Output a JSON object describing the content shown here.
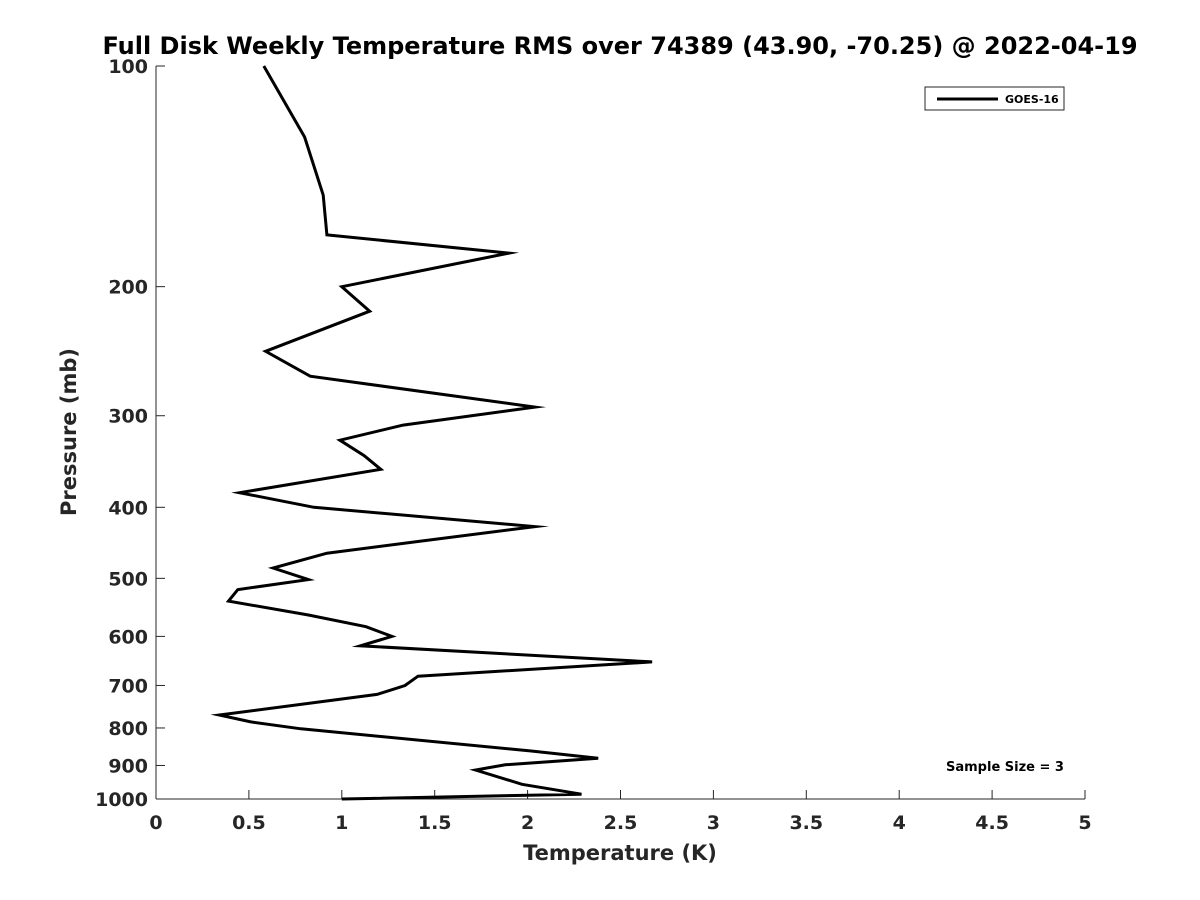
{
  "chart_data": {
    "type": "line",
    "title": "Full Disk Weekly Temperature RMS over 74389 (43.90, -70.25) @ 2022-04-19",
    "xlabel": "Temperature (K)",
    "ylabel": "Pressure (mb)",
    "xlim": [
      0,
      5
    ],
    "ylim": [
      100,
      1000
    ],
    "y_scale": "log",
    "y_reversed": true,
    "x_ticks": [
      0,
      0.5,
      1,
      1.5,
      2,
      2.5,
      3,
      3.5,
      4,
      4.5,
      5
    ],
    "x_tick_labels": [
      "0",
      "0.5",
      "1",
      "1.5",
      "2",
      "2.5",
      "3",
      "3.5",
      "4",
      "4.5",
      "5"
    ],
    "y_ticks": [
      100,
      200,
      300,
      400,
      500,
      600,
      700,
      800,
      900,
      1000
    ],
    "y_tick_labels": [
      "100",
      "200",
      "300",
      "400",
      "500",
      "600",
      "700",
      "800",
      "900",
      "1000"
    ],
    "grid": false,
    "legend_position": "top-right",
    "annotation": "Sample Size = 3",
    "series": [
      {
        "name": "GOES-16",
        "color": "#000000",
        "points": [
          [
            0.58,
            100
          ],
          [
            0.8,
            125
          ],
          [
            0.9,
            150
          ],
          [
            0.92,
            170
          ],
          [
            1.9,
            180
          ],
          [
            1.0,
            200
          ],
          [
            1.15,
            216
          ],
          [
            0.59,
            245
          ],
          [
            0.83,
            265
          ],
          [
            2.04,
            292
          ],
          [
            1.33,
            309
          ],
          [
            0.99,
            324
          ],
          [
            1.12,
            340
          ],
          [
            1.21,
            355
          ],
          [
            0.45,
            382
          ],
          [
            0.85,
            400
          ],
          [
            2.04,
            425
          ],
          [
            1.42,
            445
          ],
          [
            0.92,
            462
          ],
          [
            0.63,
            484
          ],
          [
            0.82,
            502
          ],
          [
            0.44,
            518
          ],
          [
            0.39,
            537
          ],
          [
            0.82,
            561
          ],
          [
            1.13,
            582
          ],
          [
            1.27,
            600
          ],
          [
            1.1,
            618
          ],
          [
            2.67,
            650
          ],
          [
            1.41,
            680
          ],
          [
            1.34,
            700
          ],
          [
            1.19,
            720
          ],
          [
            0.34,
            768
          ],
          [
            0.51,
            785
          ],
          [
            0.78,
            802
          ],
          [
            2.02,
            860
          ],
          [
            2.38,
            880
          ],
          [
            1.88,
            898
          ],
          [
            1.72,
            913
          ],
          [
            1.97,
            955
          ],
          [
            2.29,
            985
          ],
          [
            1.0,
            1000
          ]
        ]
      }
    ]
  }
}
